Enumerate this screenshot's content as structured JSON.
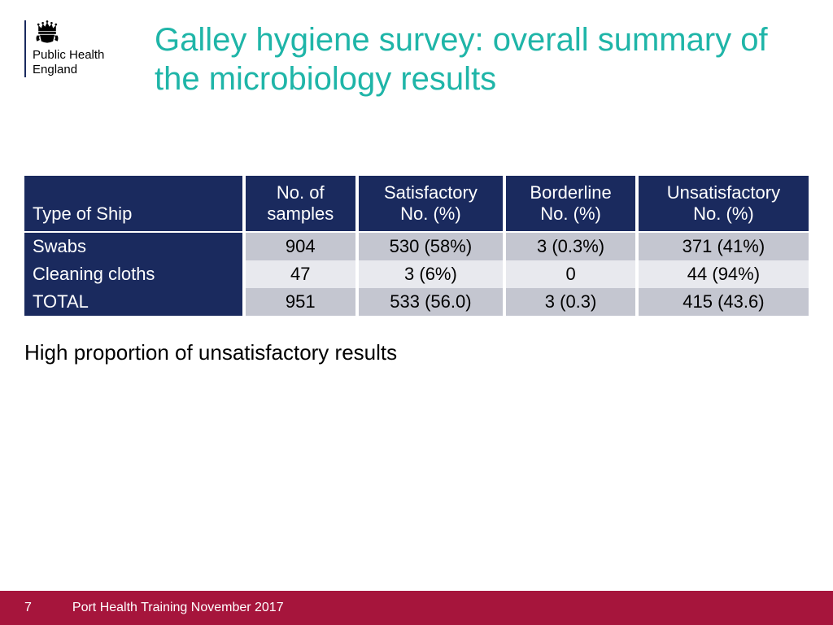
{
  "logo": {
    "line1": "Public Health",
    "line2": "England"
  },
  "title": "Galley hygiene survey: overall summary of the microbiology results",
  "table": {
    "columns": [
      "Type of Ship",
      "No. of samples",
      "Satisfactory No. (%)",
      "Borderline No. (%)",
      "Unsatisfactory No. (%)"
    ],
    "rows": [
      {
        "label": "Swabs",
        "cells": [
          "904",
          "530 (58%)",
          "3 (0.3%)",
          "371 (41%)"
        ]
      },
      {
        "label": "Cleaning cloths",
        "cells": [
          "47",
          "3 (6%)",
          "0",
          "44 (94%)"
        ]
      },
      {
        "label": "TOTAL",
        "cells": [
          "951",
          "533 (56.0)",
          "3 (0.3)",
          "415 (43.6)"
        ]
      }
    ],
    "header_bg": "#1a2a5e",
    "header_color": "#ffffff",
    "row_odd_bg": "#c4c6d0",
    "row_even_bg": "#e8e9ee",
    "fontsize": 22
  },
  "note": "High proportion of unsatisfactory results",
  "footer": {
    "page": "7",
    "text": "Port Health Training November 2017",
    "bg": "#a6153c"
  },
  "colors": {
    "title": "#1fb5a8",
    "logo_border": "#1a2a5e"
  }
}
